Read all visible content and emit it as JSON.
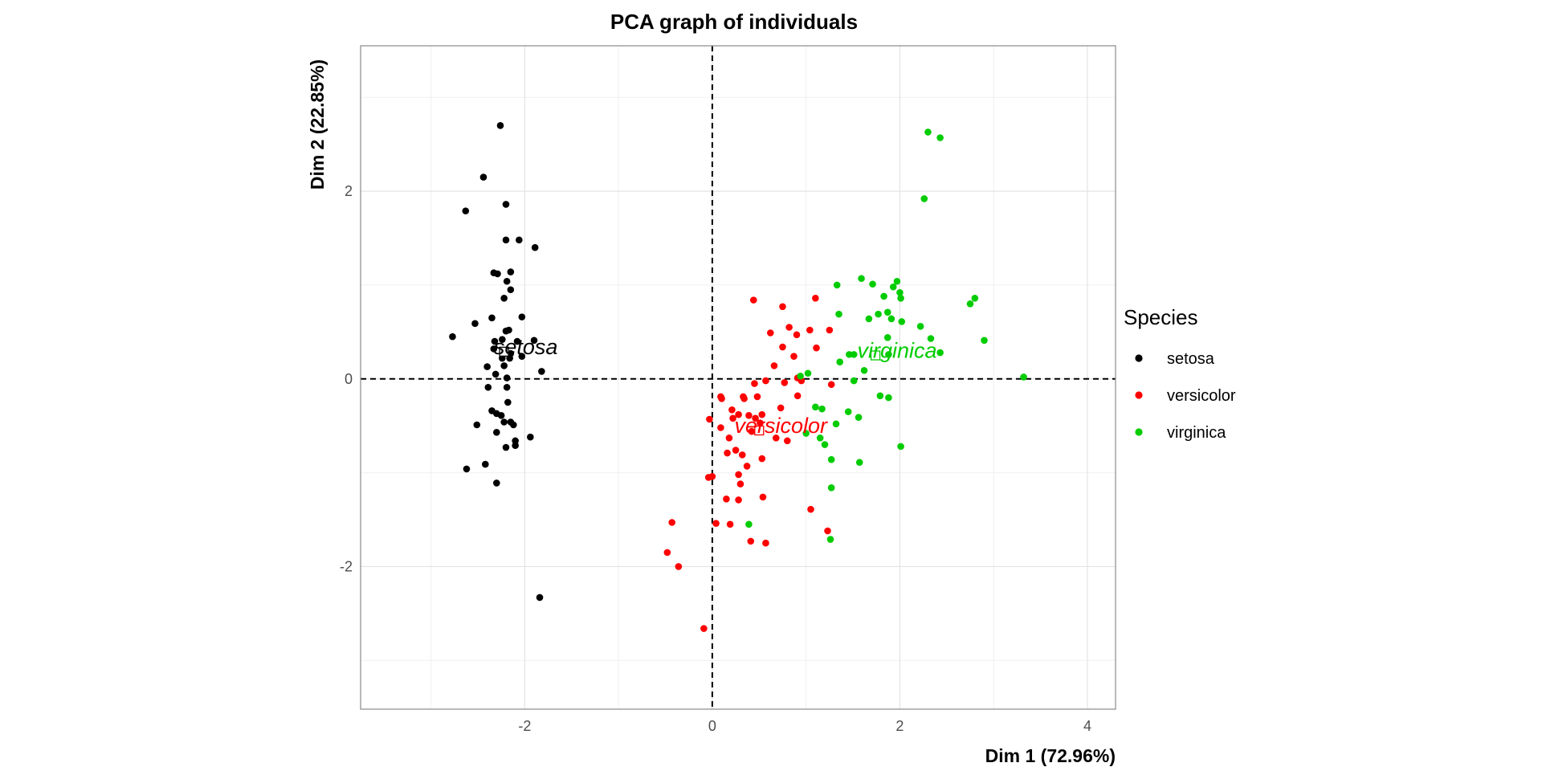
{
  "chart_data": {
    "type": "scatter",
    "title": "PCA graph of individuals",
    "xlabel": "Dim 1 (72.96%)",
    "ylabel": "Dim 2 (22.85%)",
    "xlim": [
      -3.75,
      4.3
    ],
    "ylim": [
      -3.52,
      3.55
    ],
    "xticks": [
      -2,
      0,
      2,
      4
    ],
    "yticks": [
      -2,
      0,
      2
    ],
    "xtick_labels": [
      "-2",
      "0",
      "2",
      "4"
    ],
    "ytick_labels": [
      "-2",
      "0",
      "2"
    ],
    "grid": true,
    "reference_lines": {
      "x": 0,
      "y": 0,
      "style": "dashed"
    },
    "legend": {
      "title": "Species",
      "placement": "right"
    },
    "series": [
      {
        "name": "setosa",
        "color": "#000000",
        "points": [
          [
            -2.26,
            2.7
          ],
          [
            -2.44,
            2.15
          ],
          [
            -2.63,
            1.79
          ],
          [
            -2.2,
            1.86
          ],
          [
            -2.2,
            1.48
          ],
          [
            -2.06,
            1.48
          ],
          [
            -1.89,
            1.4
          ],
          [
            -2.33,
            1.13
          ],
          [
            -2.29,
            1.12
          ],
          [
            -2.15,
            1.14
          ],
          [
            -2.19,
            1.04
          ],
          [
            -2.15,
            0.95
          ],
          [
            -2.22,
            0.86
          ],
          [
            -2.03,
            0.66
          ],
          [
            -2.35,
            0.65
          ],
          [
            -2.53,
            0.59
          ],
          [
            -2.2,
            0.51
          ],
          [
            -2.17,
            0.52
          ],
          [
            -2.24,
            0.42
          ],
          [
            -2.77,
            0.45
          ],
          [
            -2.32,
            0.4
          ],
          [
            -2.08,
            0.4
          ],
          [
            -1.9,
            0.41
          ],
          [
            -2.33,
            0.32
          ],
          [
            -2.22,
            0.3
          ],
          [
            -2.15,
            0.27
          ],
          [
            -2.24,
            0.22
          ],
          [
            -2.16,
            0.22
          ],
          [
            -2.03,
            0.24
          ],
          [
            -2.4,
            0.13
          ],
          [
            -2.22,
            0.14
          ],
          [
            -2.31,
            0.05
          ],
          [
            -1.82,
            0.08
          ],
          [
            -2.19,
            0.01
          ],
          [
            -2.39,
            -0.09
          ],
          [
            -2.19,
            -0.09
          ],
          [
            -2.35,
            -0.34
          ],
          [
            -2.3,
            -0.37
          ],
          [
            -2.25,
            -0.39
          ],
          [
            -2.18,
            -0.25
          ],
          [
            -2.22,
            -0.46
          ],
          [
            -2.15,
            -0.46
          ],
          [
            -2.12,
            -0.49
          ],
          [
            -2.51,
            -0.49
          ],
          [
            -2.3,
            -0.57
          ],
          [
            -1.94,
            -0.62
          ],
          [
            -2.1,
            -0.66
          ],
          [
            -2.1,
            -0.71
          ],
          [
            -2.2,
            -0.73
          ],
          [
            -2.42,
            -0.91
          ],
          [
            -2.62,
            -0.96
          ],
          [
            -2.3,
            -1.11
          ],
          [
            -1.84,
            -2.33
          ]
        ]
      },
      {
        "name": "versicolor",
        "color": "#ff0000",
        "points": [
          [
            0.44,
            0.84
          ],
          [
            1.1,
            0.86
          ],
          [
            0.75,
            0.77
          ],
          [
            0.82,
            0.55
          ],
          [
            1.04,
            0.52
          ],
          [
            1.25,
            0.52
          ],
          [
            0.62,
            0.49
          ],
          [
            0.75,
            0.34
          ],
          [
            0.9,
            0.47
          ],
          [
            0.87,
            0.24
          ],
          [
            1.11,
            0.33
          ],
          [
            0.66,
            0.14
          ],
          [
            0.95,
            -0.02
          ],
          [
            0.45,
            -0.05
          ],
          [
            0.57,
            -0.02
          ],
          [
            0.77,
            -0.04
          ],
          [
            1.27,
            -0.06
          ],
          [
            0.91,
            0.01
          ],
          [
            0.33,
            -0.19
          ],
          [
            0.09,
            -0.19
          ],
          [
            0.1,
            -0.21
          ],
          [
            0.21,
            -0.33
          ],
          [
            0.34,
            -0.21
          ],
          [
            0.48,
            -0.19
          ],
          [
            0.28,
            -0.38
          ],
          [
            0.39,
            -0.39
          ],
          [
            0.53,
            -0.38
          ],
          [
            0.46,
            -0.42
          ],
          [
            0.73,
            -0.31
          ],
          [
            0.91,
            -0.18
          ],
          [
            0.22,
            -0.42
          ],
          [
            0.51,
            -0.47
          ],
          [
            0.09,
            -0.52
          ],
          [
            0.42,
            -0.56
          ],
          [
            0.68,
            -0.63
          ],
          [
            0.8,
            -0.66
          ],
          [
            -0.03,
            -0.43
          ],
          [
            0.18,
            -0.63
          ],
          [
            0.25,
            -0.76
          ],
          [
            0.16,
            -0.79
          ],
          [
            0.32,
            -0.81
          ],
          [
            0.53,
            -0.85
          ],
          [
            0.37,
            -0.93
          ],
          [
            0.28,
            -1.02
          ],
          [
            0.0,
            -1.04
          ],
          [
            -0.04,
            -1.05
          ],
          [
            0.3,
            -1.12
          ],
          [
            0.15,
            -1.28
          ],
          [
            0.28,
            -1.29
          ],
          [
            0.54,
            -1.26
          ],
          [
            1.05,
            -1.39
          ],
          [
            0.04,
            -1.54
          ],
          [
            0.19,
            -1.55
          ],
          [
            -0.43,
            -1.53
          ],
          [
            0.41,
            -1.73
          ],
          [
            0.57,
            -1.75
          ],
          [
            1.23,
            -1.62
          ],
          [
            -0.48,
            -1.85
          ],
          [
            -0.36,
            -2.0
          ],
          [
            -0.09,
            -2.66
          ]
        ]
      },
      {
        "name": "virginica",
        "color": "#00cc00",
        "points": [
          [
            2.3,
            2.63
          ],
          [
            2.43,
            2.57
          ],
          [
            2.26,
            1.92
          ],
          [
            1.59,
            1.07
          ],
          [
            1.97,
            1.04
          ],
          [
            1.71,
            1.01
          ],
          [
            1.93,
            0.98
          ],
          [
            1.33,
            1.0
          ],
          [
            2.0,
            0.92
          ],
          [
            2.01,
            0.86
          ],
          [
            1.83,
            0.88
          ],
          [
            2.8,
            0.86
          ],
          [
            2.75,
            0.8
          ],
          [
            1.35,
            0.69
          ],
          [
            1.77,
            0.69
          ],
          [
            1.87,
            0.71
          ],
          [
            1.91,
            0.64
          ],
          [
            2.02,
            0.61
          ],
          [
            1.67,
            0.64
          ],
          [
            2.22,
            0.56
          ],
          [
            2.33,
            0.43
          ],
          [
            1.87,
            0.44
          ],
          [
            2.9,
            0.41
          ],
          [
            1.88,
            0.26
          ],
          [
            1.46,
            0.26
          ],
          [
            1.51,
            0.26
          ],
          [
            2.43,
            0.28
          ],
          [
            1.36,
            0.18
          ],
          [
            1.62,
            0.09
          ],
          [
            1.02,
            0.06
          ],
          [
            0.94,
            0.03
          ],
          [
            1.51,
            -0.02
          ],
          [
            3.32,
            0.02
          ],
          [
            1.79,
            -0.18
          ],
          [
            1.88,
            -0.2
          ],
          [
            1.1,
            -0.3
          ],
          [
            1.17,
            -0.32
          ],
          [
            1.45,
            -0.35
          ],
          [
            1.56,
            -0.41
          ],
          [
            1.32,
            -0.48
          ],
          [
            1.0,
            -0.58
          ],
          [
            1.15,
            -0.63
          ],
          [
            1.2,
            -0.7
          ],
          [
            2.01,
            -0.72
          ],
          [
            1.27,
            -0.86
          ],
          [
            1.57,
            -0.89
          ],
          [
            1.27,
            -1.16
          ],
          [
            0.39,
            -1.55
          ],
          [
            1.26,
            -1.71
          ]
        ]
      }
    ],
    "centroids": [
      {
        "label": "setosa",
        "x": -2.22,
        "y": 0.29,
        "color": "#000000"
      },
      {
        "label": "versicolor",
        "x": 0.5,
        "y": -0.55,
        "color": "#ff0000"
      },
      {
        "label": "virginica",
        "x": 1.74,
        "y": 0.25,
        "color": "#00cc00"
      }
    ]
  }
}
